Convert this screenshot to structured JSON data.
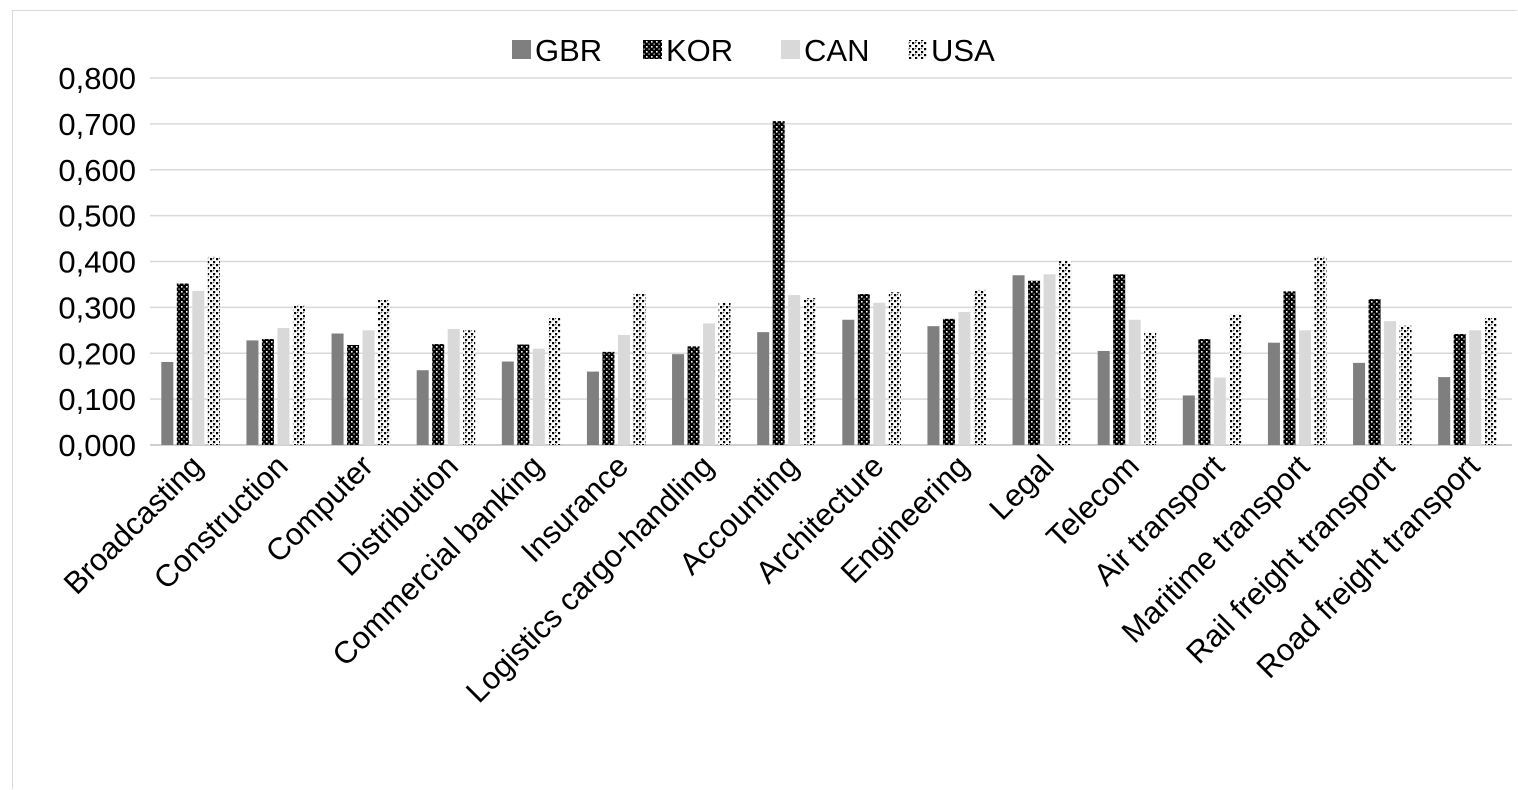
{
  "chart_data": {
    "type": "bar",
    "title": "",
    "xlabel": "",
    "ylabel": "",
    "ylim": [
      0,
      0.8
    ],
    "yticks": [
      "0,000",
      "0,100",
      "0,200",
      "0,300",
      "0,400",
      "0,500",
      "0,600",
      "0,700",
      "0,800"
    ],
    "grid": "horizontal",
    "legend_position": "top-center",
    "categories": [
      "Broadcasting",
      "Construction",
      "Computer",
      "Distribution",
      "Commercial banking",
      "Insurance",
      "Logistics cargo-handling",
      "Accounting",
      "Architecture",
      "Engineering",
      "Legal",
      "Telecom",
      "Air transport",
      "Maritime transport",
      "Rail freight transport",
      "Road freight transport"
    ],
    "series": [
      {
        "name": "GBR",
        "color": "#7f7f7f",
        "pattern": "solid",
        "values": [
          0.181,
          0.228,
          0.243,
          0.163,
          0.182,
          0.16,
          0.198,
          0.246,
          0.273,
          0.259,
          0.37,
          0.205,
          0.108,
          0.223,
          0.179,
          0.148
        ]
      },
      {
        "name": "KOR",
        "color": "#000000",
        "pattern": "dots-dense",
        "values": [
          0.352,
          0.231,
          0.218,
          0.22,
          0.219,
          0.203,
          0.215,
          0.706,
          0.329,
          0.275,
          0.358,
          0.372,
          0.231,
          0.335,
          0.318,
          0.242
        ]
      },
      {
        "name": "CAN",
        "color": "#d9d9d9",
        "pattern": "solid",
        "values": [
          0.336,
          0.255,
          0.25,
          0.253,
          0.21,
          0.24,
          0.265,
          0.327,
          0.31,
          0.29,
          0.372,
          0.273,
          0.147,
          0.25,
          0.27,
          0.25
        ]
      },
      {
        "name": "USA",
        "color": "#000000",
        "pattern": "dots-sparse",
        "values": [
          0.41,
          0.305,
          0.317,
          0.25,
          0.278,
          0.33,
          0.31,
          0.32,
          0.333,
          0.338,
          0.401,
          0.245,
          0.285,
          0.41,
          0.26,
          0.278
        ]
      }
    ]
  }
}
